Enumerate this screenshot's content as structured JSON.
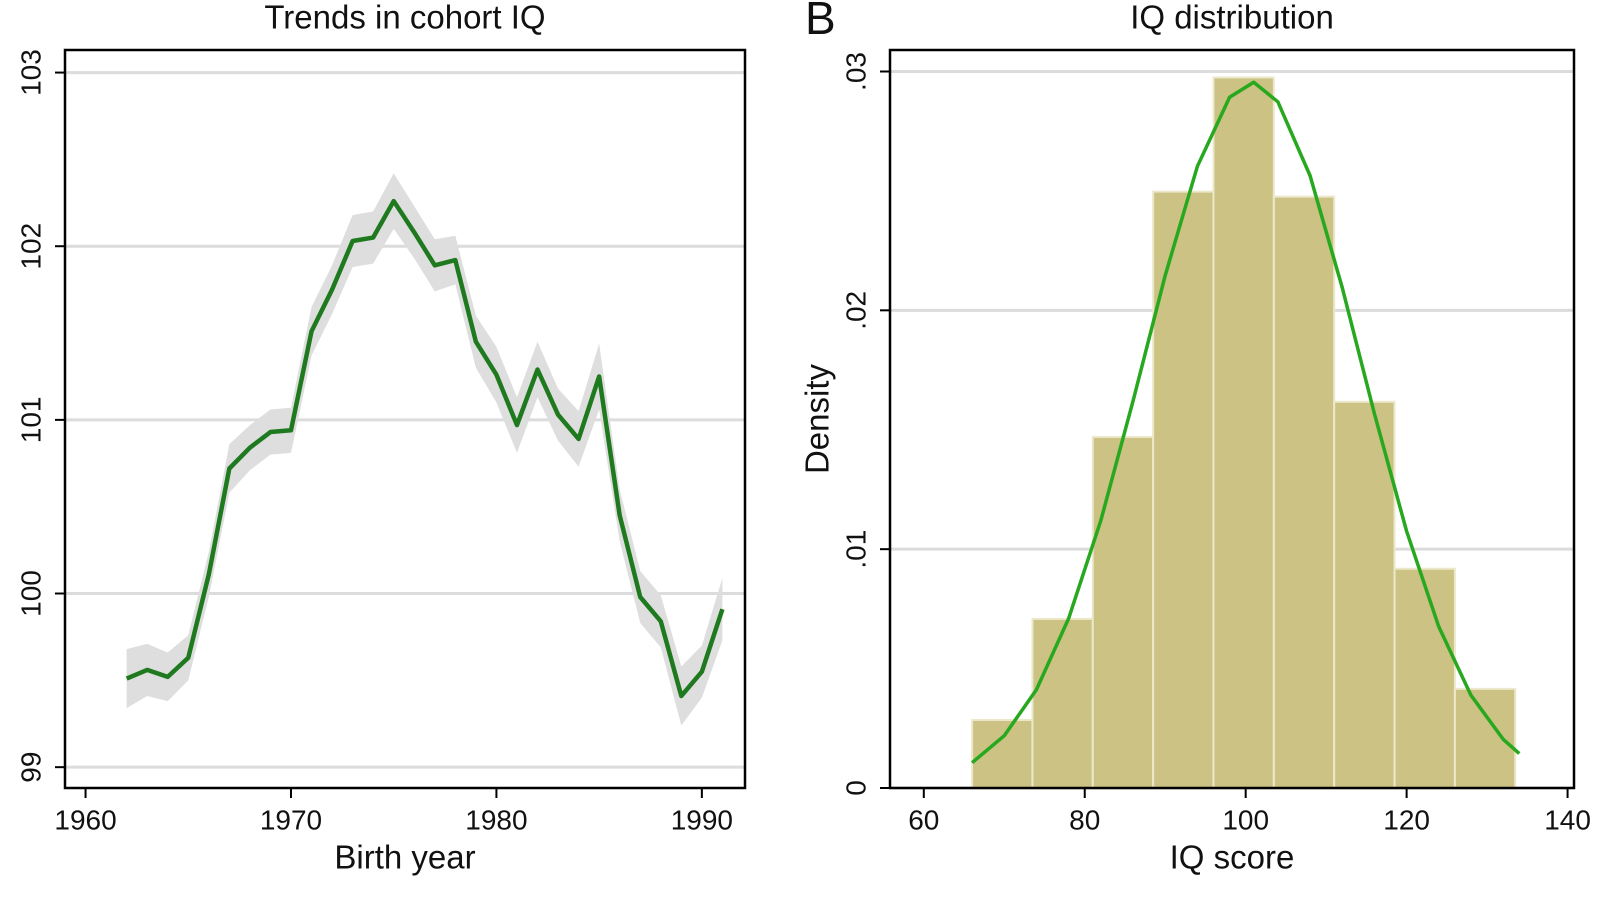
{
  "chart_data": [
    {
      "type": "line",
      "title": "Trends in cohort IQ",
      "x_label": "Birth year",
      "x": [
        1962,
        1963,
        1964,
        1965,
        1966,
        1967,
        1968,
        1969,
        1970,
        1971,
        1972,
        1973,
        1974,
        1975,
        1976,
        1977,
        1978,
        1979,
        1980,
        1981,
        1982,
        1983,
        1984,
        1985,
        1986,
        1987,
        1988,
        1989,
        1990,
        1991
      ],
      "values": [
        99.51,
        99.56,
        99.52,
        99.63,
        100.11,
        100.72,
        100.84,
        100.93,
        100.94,
        101.51,
        101.75,
        102.03,
        102.05,
        102.26,
        102.08,
        101.89,
        101.92,
        101.45,
        101.26,
        100.97,
        101.29,
        101.03,
        100.89,
        101.25,
        100.45,
        99.98,
        99.84,
        99.41,
        99.55,
        99.91
      ],
      "ci_upper": [
        99.68,
        99.71,
        99.66,
        99.76,
        100.24,
        100.86,
        100.97,
        101.06,
        101.07,
        101.65,
        101.89,
        102.18,
        102.2,
        102.42,
        102.23,
        102.04,
        102.06,
        101.6,
        101.42,
        101.13,
        101.45,
        101.18,
        101.05,
        101.44,
        100.6,
        100.13,
        99.99,
        99.58,
        99.7,
        100.09
      ],
      "ci_lower": [
        99.34,
        99.41,
        99.38,
        99.5,
        99.98,
        100.58,
        100.71,
        100.8,
        100.81,
        101.37,
        101.61,
        101.88,
        101.9,
        102.1,
        101.93,
        101.74,
        101.78,
        101.3,
        101.1,
        100.81,
        101.13,
        100.88,
        100.73,
        101.06,
        100.3,
        99.83,
        99.69,
        99.24,
        99.4,
        99.73
      ],
      "color": "#1f7a1f",
      "band_color": "#dedede",
      "xlim": [
        1959,
        1992.1
      ],
      "xticks": [
        1960,
        1970,
        1980,
        1990
      ],
      "ylim": [
        98.88,
        103.13
      ],
      "yticks": [
        99,
        100,
        101,
        102,
        103
      ],
      "grid": true
    },
    {
      "type": "histogram",
      "panel_label": "B",
      "title": "IQ distribution",
      "x_label": "IQ score",
      "y_label": "Density",
      "bins": [
        66,
        73.5,
        81,
        88.5,
        96,
        103.5,
        111,
        118.5,
        126,
        133.5
      ],
      "values": [
        0.00285,
        0.00708,
        0.0147,
        0.02497,
        0.02975,
        0.02476,
        0.01617,
        0.00918,
        0.00415
      ],
      "color": "#cbc283",
      "edge_color": "#ece8cc",
      "curve": {
        "color": "#27a81f",
        "x": [
          66,
          70,
          74,
          78,
          82,
          86,
          90,
          94,
          98,
          101,
          104,
          108,
          112,
          116,
          120,
          124,
          128,
          132,
          134
        ],
        "values": [
          0.00106,
          0.00219,
          0.00412,
          0.0071,
          0.0112,
          0.0162,
          0.02146,
          0.02603,
          0.02892,
          0.02955,
          0.02873,
          0.02564,
          0.02095,
          0.01567,
          0.01075,
          0.00675,
          0.00388,
          0.00204,
          0.00144
        ]
      },
      "xlim": [
        55.8,
        140.8
      ],
      "xticks": [
        60,
        80,
        100,
        120,
        140
      ],
      "ylim": [
        0,
        0.0309
      ],
      "yticks": [
        0,
        {
          "value": 0.01,
          "label": ".01"
        },
        {
          "value": 0.02,
          "label": ".02"
        },
        {
          "value": 0.03,
          "label": ".03"
        }
      ],
      "grid": true
    }
  ]
}
